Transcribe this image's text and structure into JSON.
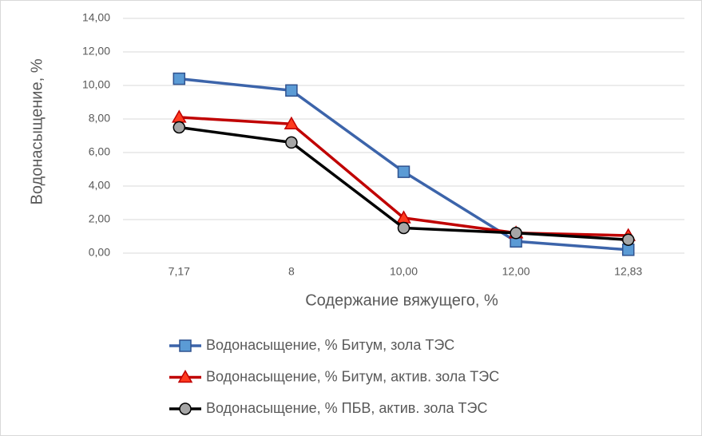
{
  "chart_data": {
    "type": "line",
    "y_label": "Водонасыщение, %",
    "x_label": "Содержание вяжущего, %",
    "categories": [
      "7,17",
      "8",
      "10,00",
      "12,00",
      "12,83"
    ],
    "series": [
      {
        "name": "Водонасыщение, % Битум, зола ТЭС",
        "color": "#3c64aa",
        "marker": "square",
        "marker_fill": "#5b9bd5",
        "marker_stroke": "#2f528f",
        "values": [
          10.4,
          9.7,
          4.85,
          0.7,
          0.2
        ]
      },
      {
        "name": "Водонасыщение, % Битум, актив. зола ТЭС",
        "color": "#c00000",
        "marker": "triangle",
        "marker_fill": "#ff3b1f",
        "marker_stroke": "#c00000",
        "values": [
          8.1,
          7.7,
          2.1,
          1.2,
          1.05
        ]
      },
      {
        "name": "Водонасыщение, % ПБВ, актив. зола ТЭС",
        "color": "#000000",
        "marker": "circle",
        "marker_fill": "#a6a6a6",
        "marker_stroke": "#000000",
        "values": [
          7.5,
          6.6,
          1.5,
          1.2,
          0.8
        ]
      }
    ],
    "ylim": [
      0,
      14
    ],
    "yticks": [
      {
        "value": 0,
        "label": "0,00"
      },
      {
        "value": 2,
        "label": "2,00"
      },
      {
        "value": 4,
        "label": "4,00"
      },
      {
        "value": 6,
        "label": "6,00"
      },
      {
        "value": 8,
        "label": "8,00"
      },
      {
        "value": 10,
        "label": "10,00"
      },
      {
        "value": 12,
        "label": "12,00"
      },
      {
        "value": 14,
        "label": "14,00"
      }
    ],
    "grid": true,
    "legend": "bottom"
  }
}
